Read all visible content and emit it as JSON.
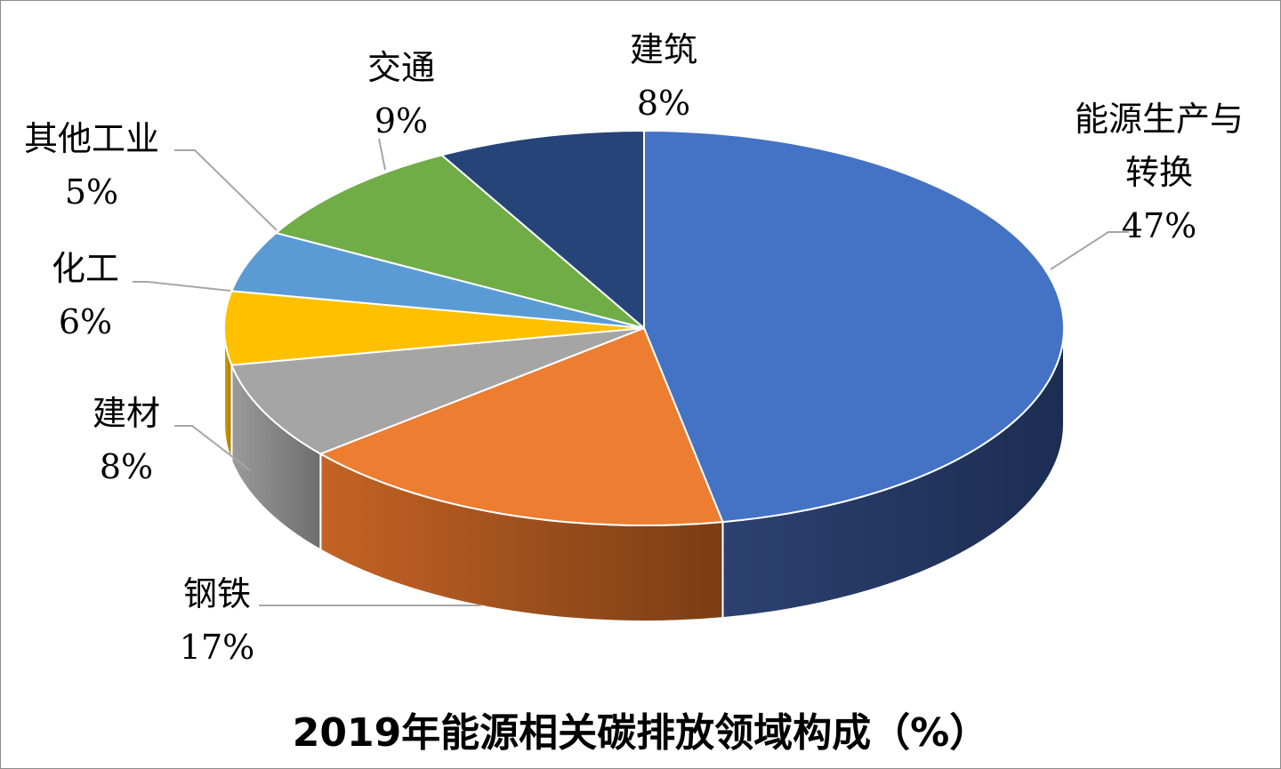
{
  "chart_data": {
    "type": "pie",
    "title": "2019年能源相关碳排放领域构成（%）",
    "slices": [
      {
        "label_lines": [
          "能源生产与",
          "转换"
        ],
        "value": 47,
        "value_label": "47%",
        "color": "#4472C4",
        "side_dark": "#1C2D52",
        "side_light": "#2B4170"
      },
      {
        "label_lines": [
          "钢铁"
        ],
        "value": 17,
        "value_label": "17%",
        "color": "#ED7D31",
        "side_dark": "#7A3D14",
        "side_light": "#C46325"
      },
      {
        "label_lines": [
          "建材"
        ],
        "value": 8,
        "value_label": "8%",
        "color": "#A5A5A5",
        "side_dark": "#6E6E6E",
        "side_light": "#9A9A9A"
      },
      {
        "label_lines": [
          "化工"
        ],
        "value": 6,
        "value_label": "6%",
        "color": "#FFC000",
        "side_dark": "#9E7700",
        "side_light": "#D9A300"
      },
      {
        "label_lines": [
          "其他工业"
        ],
        "value": 5,
        "value_label": "5%",
        "color": "#5B9BD5",
        "side_dark": "#2E5E8A",
        "side_light": "#4A86BD"
      },
      {
        "label_lines": [
          "交通"
        ],
        "value": 9,
        "value_label": "9%",
        "color": "#70AD47",
        "side_dark": "#3F6B24",
        "side_light": "#5E9538"
      },
      {
        "label_lines": [
          "建筑"
        ],
        "value": 8,
        "value_label": "8%",
        "color": "#264478",
        "side_dark": "#121F38",
        "side_light": "#1C3157"
      }
    ]
  }
}
